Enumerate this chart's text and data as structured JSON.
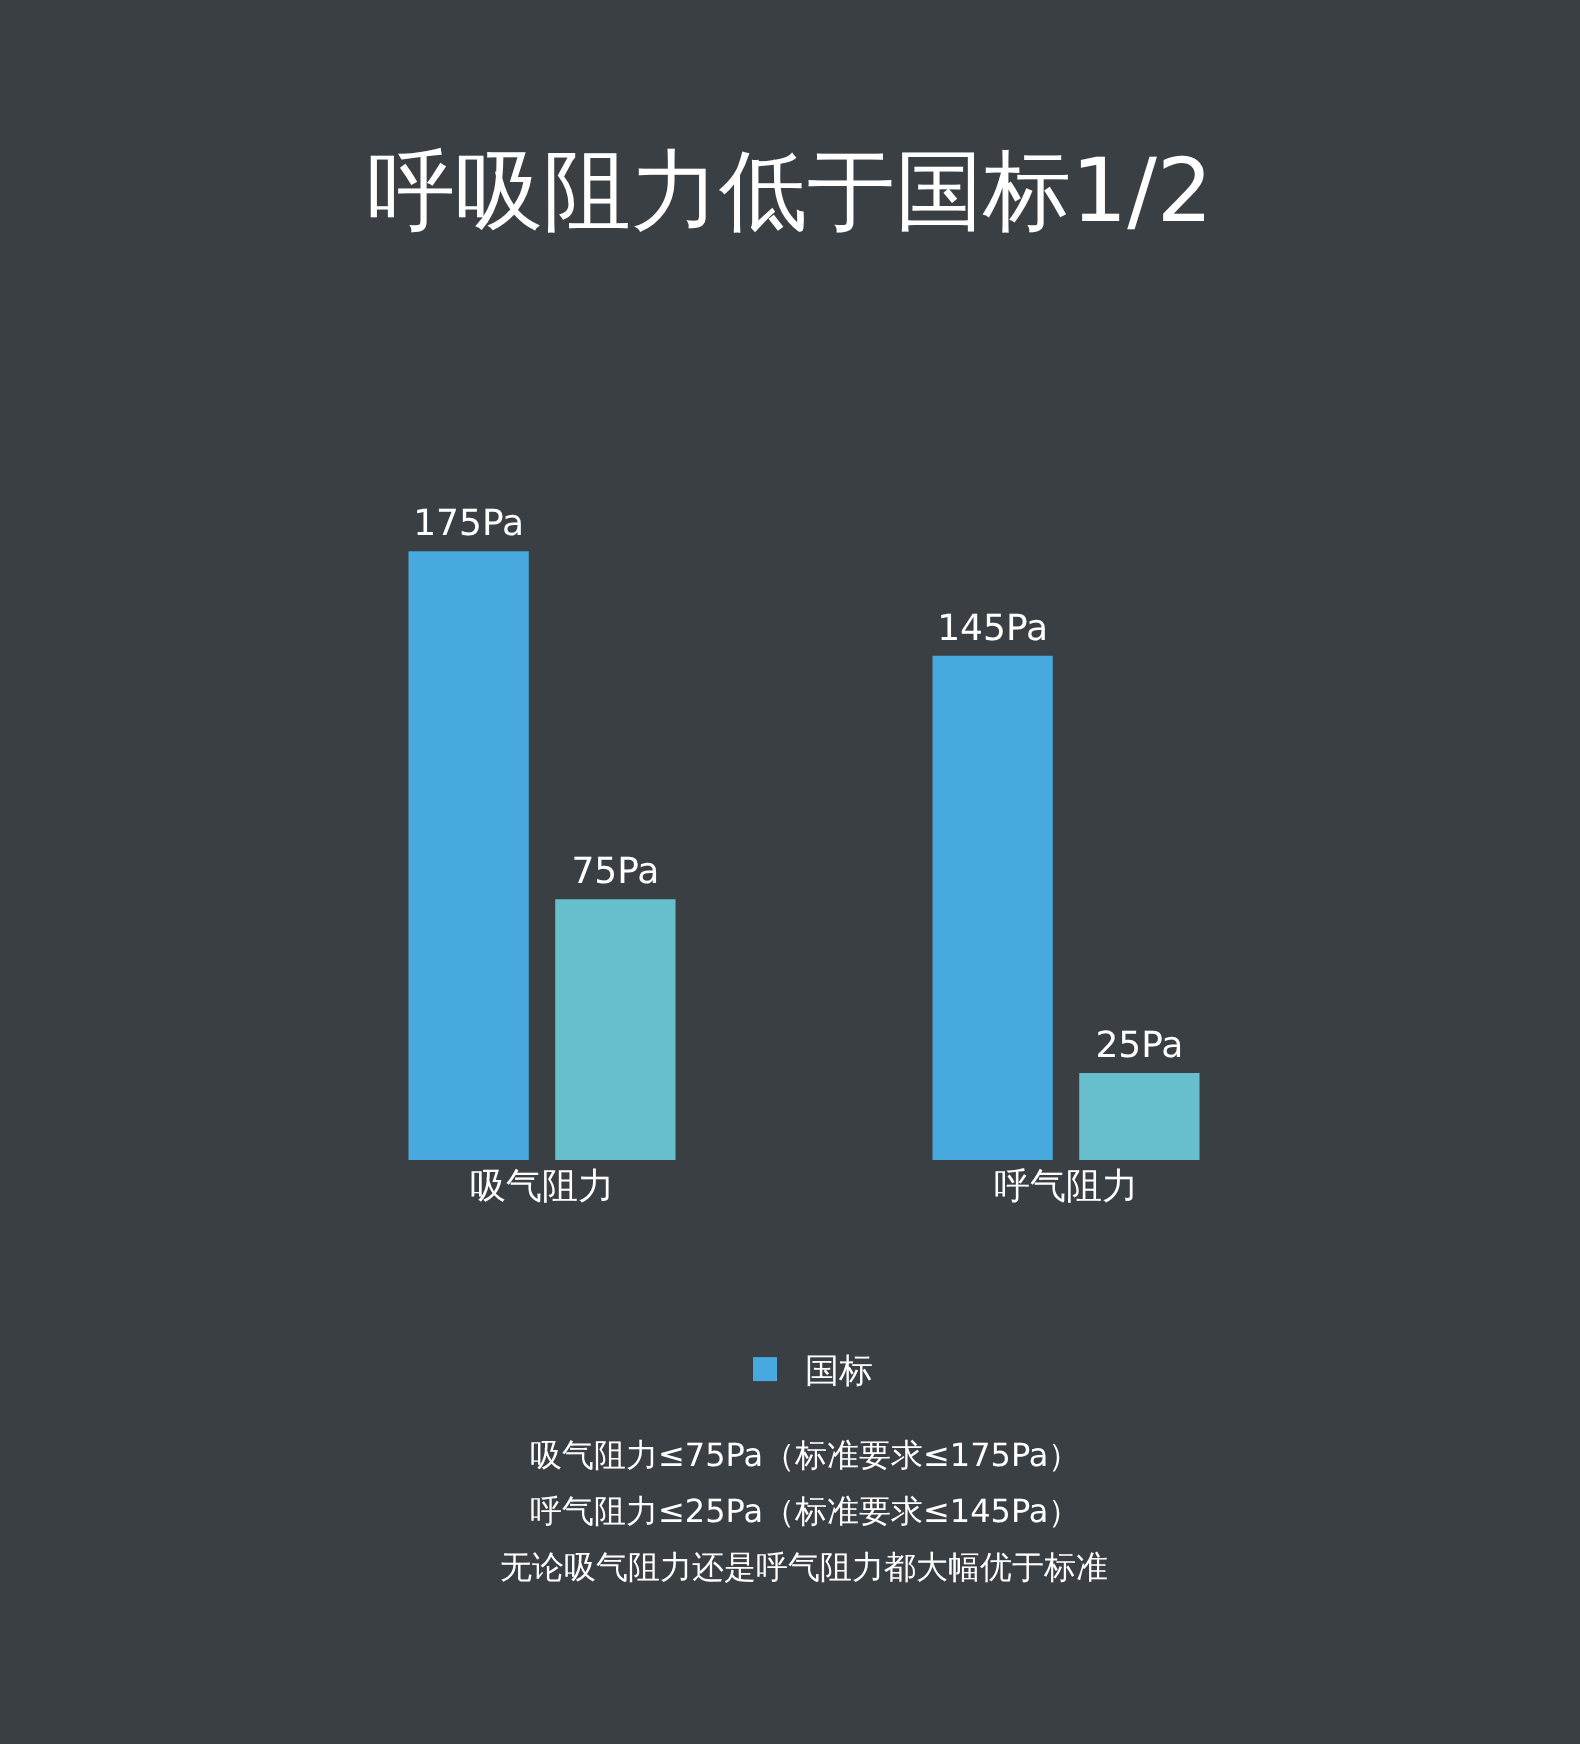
{
  "chart_data": {
    "type": "bar",
    "title": "呼吸阻力低于国标1/2",
    "categories": [
      "吸气阻力",
      "呼气阻力"
    ],
    "series": [
      {
        "name": "国标",
        "color": "#47a9de",
        "values": [
          175,
          145
        ],
        "value_labels": [
          "175Pa",
          "145Pa"
        ]
      },
      {
        "color": "#67bfcd",
        "values": [
          75,
          25
        ],
        "value_labels": [
          "75Pa",
          "25Pa"
        ]
      }
    ],
    "tick_labels": "x",
    "grid": false,
    "legend": "bottom",
    "annotations": [
      "吸气阻力≤75Pa（标准要求≤175Pa）",
      "呼气阻力≤25Pa（标准要求≤145Pa）",
      "无论吸气阻力还是呼气阻力都大幅优于标准"
    ]
  }
}
